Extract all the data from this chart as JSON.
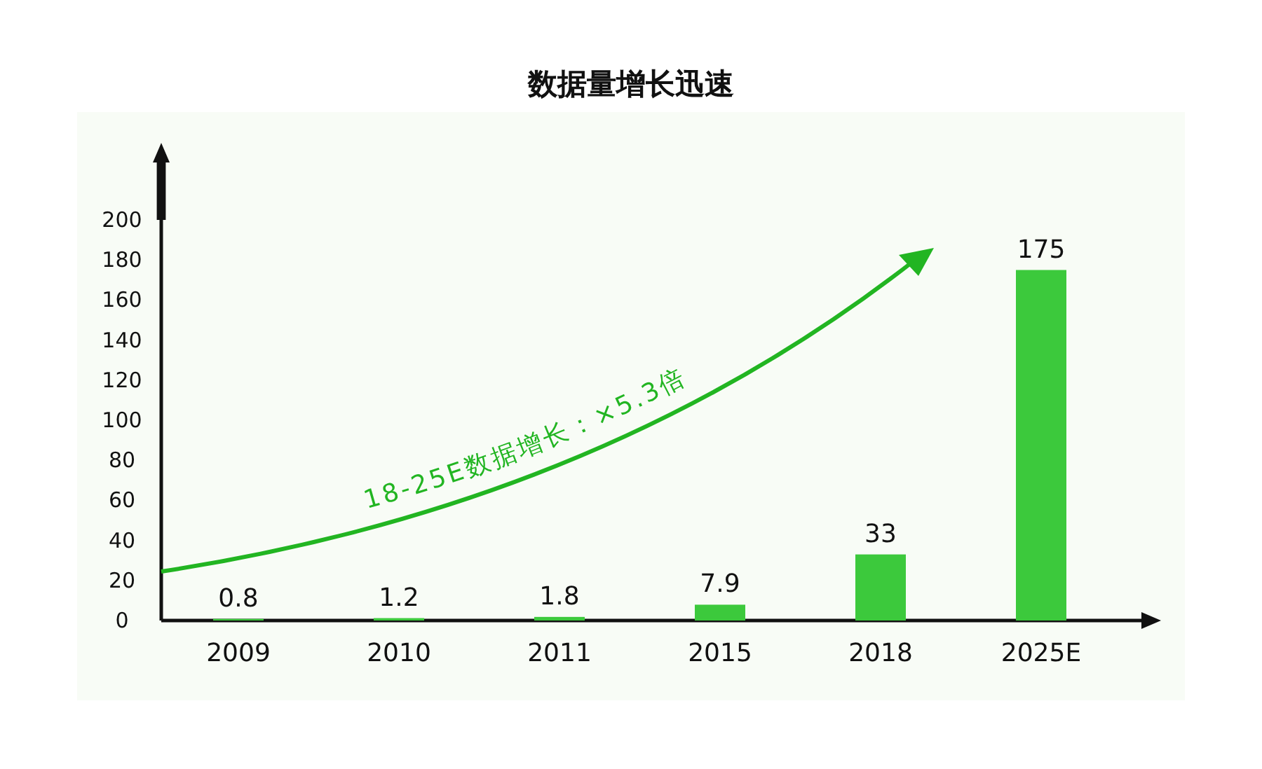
{
  "chart_data": {
    "type": "bar",
    "title": "数据量增长迅速",
    "categories": [
      "2009",
      "2010",
      "2011",
      "2015",
      "2018",
      "2025E"
    ],
    "values": [
      0.8,
      1.2,
      1.8,
      7.9,
      33,
      175
    ],
    "color": "#3cc93c",
    "ylim": [
      0,
      200
    ],
    "yticks": [
      0,
      20,
      40,
      60,
      80,
      100,
      120,
      140,
      160,
      180,
      200
    ],
    "data_labels": true,
    "annotations": [
      "18-25E数据增长：×5.3倍"
    ]
  }
}
